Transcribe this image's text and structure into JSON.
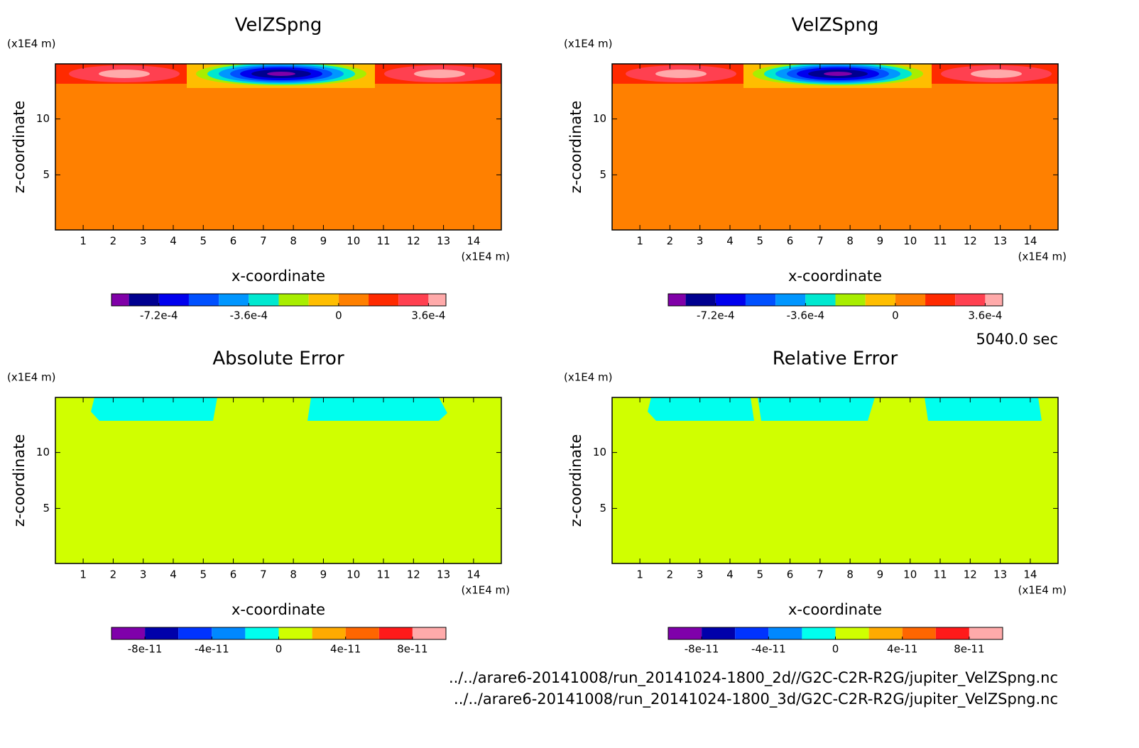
{
  "chart_data": [
    {
      "type": "contour",
      "title": "VelZSpng",
      "xlabel": "x-coordinate",
      "ylabel": "z-coordinate",
      "x_unit": "(x1E4 m)",
      "y_unit": "(x1E4 m)",
      "xlim": [
        0.075,
        14.925
      ],
      "ylim": [
        0.075,
        14.925
      ],
      "xticks": [
        1,
        2,
        3,
        4,
        5,
        6,
        7,
        8,
        9,
        10,
        11,
        12,
        13,
        14
      ],
      "yticks": [
        5,
        10
      ],
      "colorbar": {
        "clim": [
          -0.00091,
          0.00043
        ],
        "levels": [
          -0.00084,
          -0.00072,
          -0.0006,
          -0.00048,
          -0.00036,
          -0.00024,
          -0.00012,
          0,
          0.00012,
          0.00024,
          0.00036
        ],
        "colors": [
          "#8000a8",
          "#00008f",
          "#0000ee",
          "#0050ff",
          "#0096ff",
          "#00e8d0",
          "#a8ee00",
          "#ffbe00",
          "#ff8000",
          "#ff2a00",
          "#ff4050",
          "#ffaaaa"
        ],
        "ticks": [
          {
            "value": -0.00072,
            "label": "-7.2e-4"
          },
          {
            "value": -0.00036,
            "label": "-3.6e-4"
          },
          0,
          {
            "value": 0.00036,
            "label": "3.6e-4"
          }
        ]
      }
    },
    {
      "type": "contour",
      "title": "VelZSpng",
      "xlabel": "x-coordinate",
      "ylabel": "z-coordinate",
      "x_unit": "(x1E4 m)",
      "y_unit": "(x1E4 m)",
      "xlim": [
        0.075,
        14.925
      ],
      "ylim": [
        0.075,
        14.925
      ],
      "xticks": [
        1,
        2,
        3,
        4,
        5,
        6,
        7,
        8,
        9,
        10,
        11,
        12,
        13,
        14
      ],
      "yticks": [
        5,
        10
      ],
      "colorbar": {
        "clim": [
          -0.00091,
          0.00043
        ],
        "levels": [
          -0.00084,
          -0.00072,
          -0.0006,
          -0.00048,
          -0.00036,
          -0.00024,
          -0.00012,
          0,
          0.00012,
          0.00024,
          0.00036
        ],
        "colors": [
          "#8000a8",
          "#00008f",
          "#0000ee",
          "#0050ff",
          "#0096ff",
          "#00e8d0",
          "#a8ee00",
          "#ffbe00",
          "#ff8000",
          "#ff2a00",
          "#ff4050",
          "#ffaaaa"
        ],
        "ticks": [
          {
            "value": -0.00072,
            "label": "-7.2e-4"
          },
          {
            "value": -0.00036,
            "label": "-3.6e-4"
          },
          0,
          {
            "value": 0.00036,
            "label": "3.6e-4"
          }
        ]
      }
    },
    {
      "type": "contour",
      "title": "Absolute Error",
      "xlabel": "x-coordinate",
      "ylabel": "z-coordinate",
      "x_unit": "(x1E4 m)",
      "y_unit": "(x1E4 m)",
      "xlim": [
        0.075,
        14.925
      ],
      "ylim": [
        0.075,
        14.925
      ],
      "xticks": [
        1,
        2,
        3,
        4,
        5,
        6,
        7,
        8,
        9,
        10,
        11,
        12,
        13,
        14
      ],
      "yticks": [
        5,
        10
      ],
      "colorbar": {
        "clim": [
          -1e-10,
          1e-10
        ],
        "levels": [
          -8e-11,
          -6e-11,
          -4e-11,
          -2e-11,
          0,
          2e-11,
          4e-11,
          6e-11,
          8e-11
        ],
        "colors": [
          "#7f00aa",
          "#0000aa",
          "#0033ff",
          "#0088ff",
          "#00ffee",
          "#d0ff00",
          "#ffaa00",
          "#ff6600",
          "#ff1a1a",
          "#ffaaaa"
        ],
        "ticks": [
          {
            "value": -8e-11,
            "label": "-8e-11"
          },
          {
            "value": -4e-11,
            "label": "-4e-11"
          },
          0,
          {
            "value": 4e-11,
            "label": "4e-11"
          },
          {
            "value": 8e-11,
            "label": "8e-11"
          }
        ]
      }
    },
    {
      "type": "contour",
      "title": "Relative Error",
      "xlabel": "x-coordinate",
      "ylabel": "z-coordinate",
      "x_unit": "(x1E4 m)",
      "y_unit": "(x1E4 m)",
      "xlim": [
        0.075,
        14.925
      ],
      "ylim": [
        0.075,
        14.925
      ],
      "xticks": [
        1,
        2,
        3,
        4,
        5,
        6,
        7,
        8,
        9,
        10,
        11,
        12,
        13,
        14
      ],
      "yticks": [
        5,
        10
      ],
      "colorbar": {
        "clim": [
          -1e-10,
          1e-10
        ],
        "levels": [
          -8e-11,
          -6e-11,
          -4e-11,
          -2e-11,
          0,
          2e-11,
          4e-11,
          6e-11,
          8e-11
        ],
        "colors": [
          "#7f00aa",
          "#0000aa",
          "#0033ff",
          "#0088ff",
          "#00ffee",
          "#d0ff00",
          "#ffaa00",
          "#ff6600",
          "#ff1a1a",
          "#ffaaaa"
        ],
        "ticks": [
          {
            "value": -8e-11,
            "label": "-8e-11"
          },
          {
            "value": -4e-11,
            "label": "-4e-11"
          },
          0,
          {
            "value": 4e-11,
            "label": "4e-11"
          },
          {
            "value": 8e-11,
            "label": "8e-11"
          }
        ]
      }
    }
  ],
  "time": "5040.0 sec",
  "files": [
    "../../arare6-20141008/run_20141024-1800_2d//G2C-C2R-R2G/jupiter_VelZSpng.nc",
    "../../arare6-20141008/run_20141024-1800_3d/G2C-C2R-R2G/jupiter_VelZSpng.nc"
  ]
}
